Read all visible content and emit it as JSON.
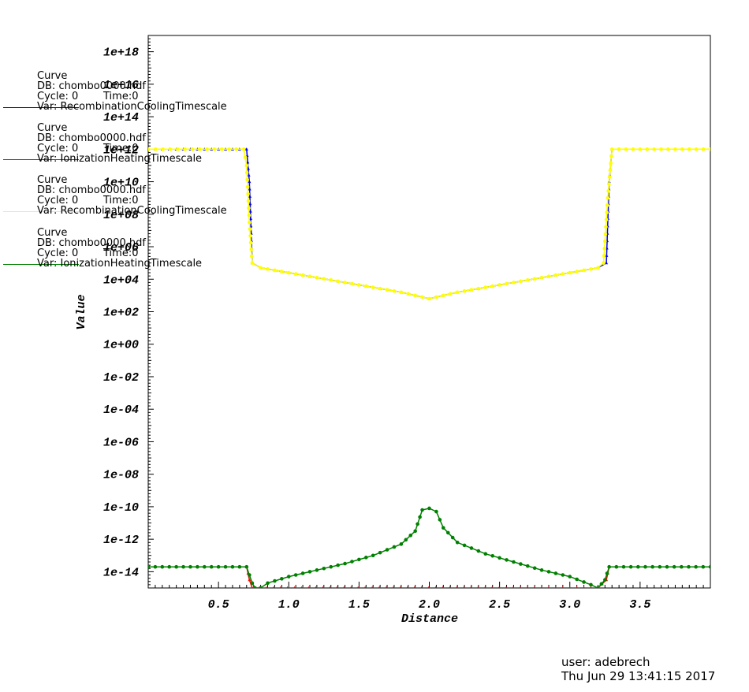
{
  "chart_data": {
    "type": "line",
    "title": "",
    "xlabel": "Distance",
    "ylabel": "Value",
    "xlim": [
      0.0,
      4.0
    ],
    "ylim_log10": [
      -15,
      19
    ],
    "y_scale": "log",
    "grid": false,
    "x_ticks": [
      {
        "value": 0.5,
        "label": "0.5"
      },
      {
        "value": 1.0,
        "label": "1.0"
      },
      {
        "value": 1.5,
        "label": "1.5"
      },
      {
        "value": 2.0,
        "label": "2.0"
      },
      {
        "value": 2.5,
        "label": "2.5"
      },
      {
        "value": 3.0,
        "label": "3.0"
      },
      {
        "value": 3.5,
        "label": "3.5"
      }
    ],
    "y_ticks": [
      {
        "exp": 18,
        "label": "1e+18"
      },
      {
        "exp": 16,
        "label": "1e+16"
      },
      {
        "exp": 14,
        "label": "1e+14"
      },
      {
        "exp": 12,
        "label": "1e+12"
      },
      {
        "exp": 10,
        "label": "1e+10"
      },
      {
        "exp": 8,
        "label": "1e+08"
      },
      {
        "exp": 6,
        "label": "1e+06"
      },
      {
        "exp": 4,
        "label": "1e+04"
      },
      {
        "exp": 2,
        "label": "1e+02"
      },
      {
        "exp": 0,
        "label": "1e+00"
      },
      {
        "exp": -2,
        "label": "1e-02"
      },
      {
        "exp": -4,
        "label": "1e-04"
      },
      {
        "exp": -6,
        "label": "1e-06"
      },
      {
        "exp": -8,
        "label": "1e-08"
      },
      {
        "exp": -10,
        "label": "1e-10"
      },
      {
        "exp": -12,
        "label": "1e-12"
      },
      {
        "exp": -14,
        "label": "1e-14"
      }
    ],
    "series": [
      {
        "name": "RecombinationCoolingTimescale",
        "color": "#0000ff",
        "marker": "triangle",
        "points_log10": [
          [
            0.0,
            12.0
          ],
          [
            0.7,
            12.0
          ],
          [
            0.72,
            10.0
          ],
          [
            0.74,
            5.0
          ],
          [
            0.8,
            4.7
          ],
          [
            1.0,
            4.4
          ],
          [
            1.2,
            4.1
          ],
          [
            1.4,
            3.8
          ],
          [
            1.6,
            3.5
          ],
          [
            1.8,
            3.2
          ],
          [
            1.95,
            2.9
          ],
          [
            2.0,
            2.8
          ],
          [
            2.05,
            2.9
          ],
          [
            2.2,
            3.2
          ],
          [
            2.4,
            3.5
          ],
          [
            2.6,
            3.8
          ],
          [
            2.8,
            4.1
          ],
          [
            3.0,
            4.4
          ],
          [
            3.2,
            4.7
          ],
          [
            3.26,
            5.0
          ],
          [
            3.28,
            10.0
          ],
          [
            3.3,
            12.0
          ],
          [
            4.0,
            12.0
          ]
        ]
      },
      {
        "name": "IonizationHeatingTimescale",
        "color": "#ff0000",
        "marker": "triangle",
        "points_log10": [
          [
            0.0,
            -13.7
          ],
          [
            0.7,
            -13.7
          ],
          [
            0.72,
            -14.5
          ],
          [
            0.74,
            -15.0
          ],
          [
            3.2,
            -15.0
          ],
          [
            3.26,
            -14.5
          ],
          [
            3.28,
            -13.7
          ],
          [
            4.0,
            -13.7
          ]
        ]
      },
      {
        "name": "RecombinationCoolingTimescale",
        "color": "#ffff00",
        "marker": "circle",
        "points_log10": [
          [
            0.0,
            12.0
          ],
          [
            0.68,
            12.0
          ],
          [
            0.7,
            11.0
          ],
          [
            0.72,
            7.5
          ],
          [
            0.74,
            5.0
          ],
          [
            0.8,
            4.7
          ],
          [
            1.0,
            4.4
          ],
          [
            1.2,
            4.1
          ],
          [
            1.4,
            3.8
          ],
          [
            1.6,
            3.5
          ],
          [
            1.8,
            3.2
          ],
          [
            1.95,
            2.9
          ],
          [
            2.0,
            2.8
          ],
          [
            2.05,
            2.9
          ],
          [
            2.2,
            3.2
          ],
          [
            2.4,
            3.5
          ],
          [
            2.6,
            3.8
          ],
          [
            2.8,
            4.1
          ],
          [
            3.0,
            4.4
          ],
          [
            3.2,
            4.7
          ],
          [
            3.24,
            5.0
          ],
          [
            3.27,
            9.0
          ],
          [
            3.3,
            12.0
          ],
          [
            4.0,
            12.0
          ]
        ]
      },
      {
        "name": "IonizationHeatingTimescale",
        "color": "#008000",
        "marker": "circle",
        "points_log10": [
          [
            0.0,
            -13.7
          ],
          [
            0.7,
            -13.7
          ],
          [
            0.72,
            -14.2
          ],
          [
            0.74,
            -14.7
          ],
          [
            0.76,
            -15.0
          ],
          [
            0.8,
            -15.0
          ],
          [
            0.85,
            -14.7
          ],
          [
            1.0,
            -14.3
          ],
          [
            1.2,
            -13.9
          ],
          [
            1.4,
            -13.5
          ],
          [
            1.6,
            -13.0
          ],
          [
            1.8,
            -12.3
          ],
          [
            1.9,
            -11.5
          ],
          [
            1.95,
            -10.2
          ],
          [
            2.0,
            -10.1
          ],
          [
            2.05,
            -10.3
          ],
          [
            2.1,
            -11.3
          ],
          [
            2.2,
            -12.2
          ],
          [
            2.4,
            -12.9
          ],
          [
            2.6,
            -13.4
          ],
          [
            2.8,
            -13.9
          ],
          [
            3.0,
            -14.3
          ],
          [
            3.15,
            -14.8
          ],
          [
            3.2,
            -15.0
          ],
          [
            3.25,
            -14.5
          ],
          [
            3.28,
            -13.7
          ],
          [
            4.0,
            -13.7
          ]
        ]
      }
    ]
  },
  "legend": [
    {
      "type_label": "Curve",
      "db": "DB: chombo0000.hdf",
      "cycle": "Cycle: 0",
      "time": "Time:0",
      "var": "Var: RecombinationCoolingTimescale",
      "color": "#0000ff"
    },
    {
      "type_label": "Curve",
      "db": "DB: chombo0000.hdf",
      "cycle": "Cycle: 0",
      "time": "Time:0",
      "var": "Var: IonizationHeatingTimescale",
      "color": "#ff0000"
    },
    {
      "type_label": "Curve",
      "db": "DB: chombo0000.hdf",
      "cycle": "Cycle: 0",
      "time": "Time:0",
      "var": "Var: RecombinationCoolingTimescale",
      "color": "#ffff00"
    },
    {
      "type_label": "Curve",
      "db": "DB: chombo0000.hdf",
      "cycle": "Cycle: 0",
      "time": "Time:0",
      "var": "Var: IonizationHeatingTimescale",
      "color": "#008000"
    }
  ],
  "footer": {
    "user": "user: adebrech",
    "date": "Thu Jun 29 13:41:15 2017"
  }
}
